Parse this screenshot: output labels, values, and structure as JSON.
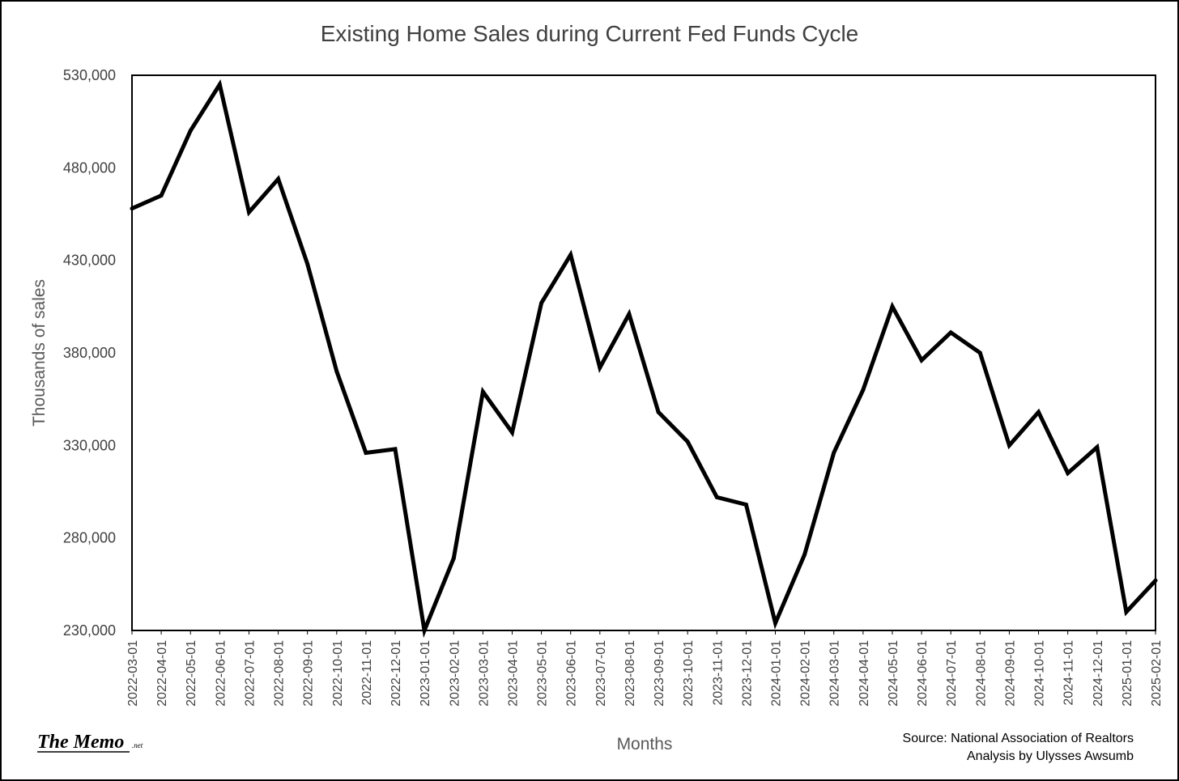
{
  "chart_data": {
    "type": "line",
    "title": "Existing Home Sales during Current Fed Funds Cycle",
    "xlabel": "Months",
    "ylabel": "Thousands of sales",
    "ylim": [
      230000,
      530000
    ],
    "yticks": [
      "230,000",
      "280,000",
      "330,000",
      "380,000",
      "430,000",
      "480,000",
      "530,000"
    ],
    "ytick_values": [
      230000,
      280000,
      330000,
      380000,
      430000,
      480000,
      530000
    ],
    "grid": false,
    "legend": "none",
    "categories": [
      "2022-03-01",
      "2022-04-01",
      "2022-05-01",
      "2022-06-01",
      "2022-07-01",
      "2022-08-01",
      "2022-09-01",
      "2022-10-01",
      "2022-11-01",
      "2022-12-01",
      "2023-01-01",
      "2023-02-01",
      "2023-03-01",
      "2023-04-01",
      "2023-05-01",
      "2023-06-01",
      "2023-07-01",
      "2023-08-01",
      "2023-09-01",
      "2023-10-01",
      "2023-11-01",
      "2023-12-01",
      "2024-01-01",
      "2024-02-01",
      "2024-03-01",
      "2024-04-01",
      "2024-05-01",
      "2024-06-01",
      "2024-07-01",
      "2024-08-01",
      "2024-09-01",
      "2024-10-01",
      "2024-11-01",
      "2024-12-01",
      "2025-01-01",
      "2025-02-01"
    ],
    "series": [
      {
        "values": [
          458000,
          465000,
          500000,
          525000,
          456000,
          474000,
          428000,
          370000,
          326000,
          328000,
          230000,
          269000,
          359000,
          337000,
          407000,
          433000,
          372000,
          401000,
          348000,
          332000,
          302000,
          298000,
          234000,
          271000,
          326000,
          360000,
          405000,
          376000,
          391000,
          380000,
          330000,
          348000,
          315000,
          329000,
          240000,
          257000
        ],
        "color": "#000000"
      }
    ]
  },
  "footer": {
    "logo_text": "The Memo",
    "logo_suffix": ".net",
    "source_line1": "Source: National Association of Realtors",
    "source_line2": "Analysis by Ulysses Awsumb"
  }
}
